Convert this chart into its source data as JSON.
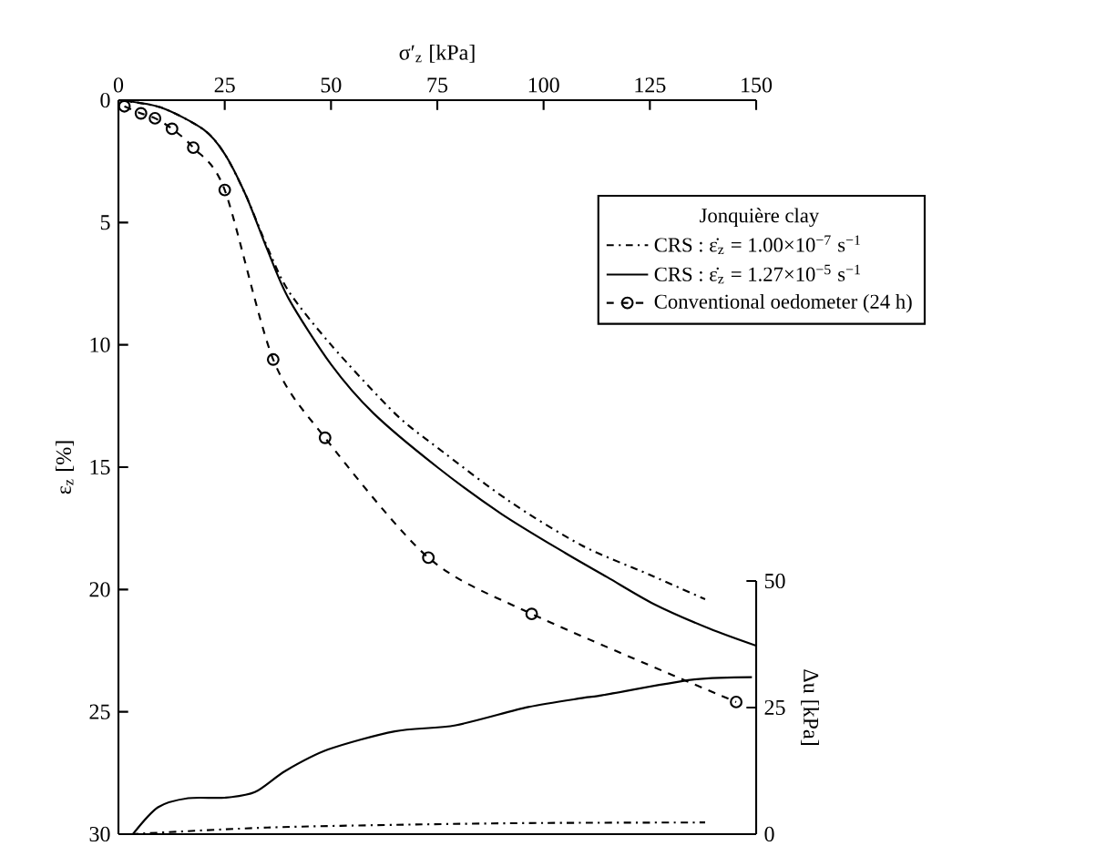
{
  "chart_data": {
    "type": "line",
    "xlabel": "σ′$_{z}$ [kPa]",
    "ylabel": "ε$_{z}$ [%]",
    "y2label": "Δu [kPa]",
    "legend_title": "Jonquière clay",
    "xlim": [
      0,
      150
    ],
    "xticks": [
      0,
      25,
      50,
      75,
      100,
      125,
      150
    ],
    "ylim": [
      30,
      0
    ],
    "yticks": [
      0,
      5,
      10,
      15,
      20,
      25,
      30
    ],
    "y2lim": [
      0,
      50
    ],
    "y2ticks": [
      0,
      25,
      50
    ],
    "legend": "right",
    "grid": false,
    "series": [
      {
        "name": "CRS : ε̇$_{z}$ = 1.00×10$^{−7}$ s$^{−1}$",
        "color": "#000000",
        "line_style": "dashdot",
        "marker": "none",
        "x": [
          0,
          10,
          20,
          25,
          30,
          35,
          40,
          50,
          65,
          75,
          92,
          109,
          125,
          138
        ],
        "values": [
          0,
          0.3,
          1.2,
          2.2,
          3.9,
          6.0,
          7.8,
          10.0,
          12.8,
          14.2,
          16.4,
          18.2,
          19.4,
          20.4
        ]
      },
      {
        "name": "CRS : ε̇$_{z}$ = 1.27×10$^{−5}$ s$^{−1}$",
        "color": "#000000",
        "line_style": "solid",
        "marker": "none",
        "x": [
          0,
          10,
          20,
          25,
          30,
          35,
          40,
          50,
          60,
          75,
          90,
          105,
          115,
          126,
          139,
          150
        ],
        "values": [
          0,
          0.3,
          1.2,
          2.2,
          3.9,
          6.1,
          8.1,
          10.8,
          12.8,
          15.0,
          16.9,
          18.5,
          19.5,
          20.6,
          21.6,
          22.3
        ]
      },
      {
        "name": "Conventional oedometer (24 h)",
        "color": "#000000",
        "line_style": "dashed",
        "marker": "circle",
        "x": [
          1.4,
          5.3,
          8.6,
          12.6,
          17.6,
          25,
          36.4,
          48.6,
          72.9,
          97.2,
          145.3
        ],
        "values": [
          0.25,
          0.54,
          0.74,
          1.17,
          1.94,
          3.67,
          10.6,
          13.8,
          18.7,
          21.0,
          24.6
        ]
      },
      {
        "color": "#000000",
        "line_style": "dashdot",
        "marker": "none",
        "axis": "y2",
        "x": [
          3,
          35,
          70,
          100,
          138
        ],
        "values": [
          0,
          1.3,
          1.9,
          2.2,
          2.3
        ]
      },
      {
        "color": "#000000",
        "line_style": "solid",
        "marker": "none",
        "axis": "y2",
        "x": [
          3.4,
          9.3,
          16.4,
          25,
          32.1,
          39.3,
          49.3,
          65,
          79.3,
          96.4,
          109.3,
          113.6,
          135,
          149
        ],
        "values": [
          0,
          5.3,
          7.1,
          7.2,
          8.3,
          12.5,
          16.7,
          20.3,
          21.5,
          25.1,
          26.9,
          27.4,
          30.5,
          31.0
        ]
      }
    ]
  }
}
